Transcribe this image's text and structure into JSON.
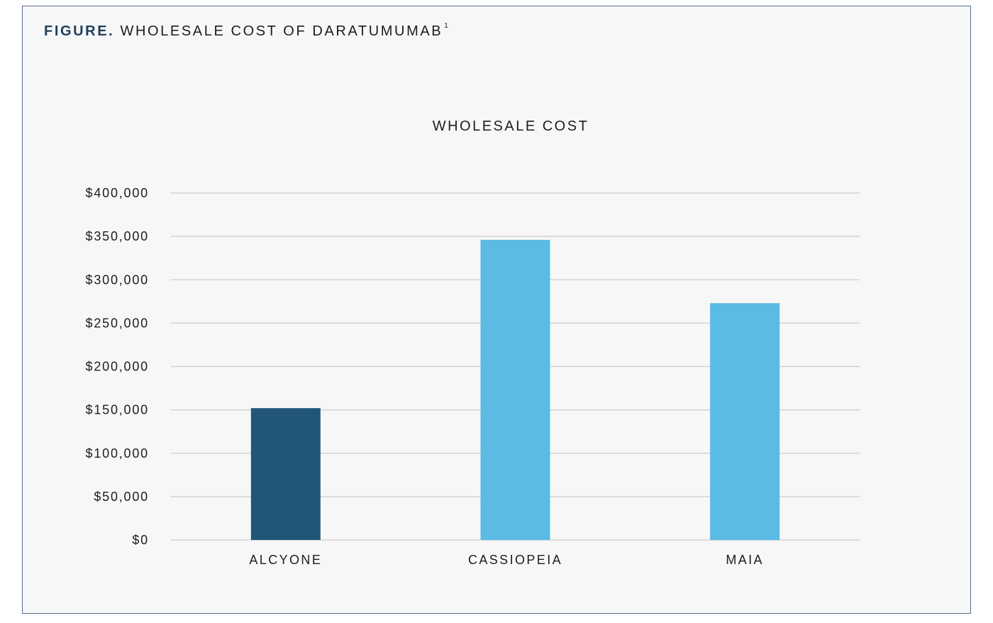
{
  "figure": {
    "label": "FIGURE.",
    "title": "WHOLESALE COST OF DARATUMUMAB",
    "footnote_ref": "1"
  },
  "chart_data": {
    "type": "bar",
    "title": "WHOLESALE COST",
    "xlabel": "",
    "ylabel": "",
    "categories": [
      "ALCYONE",
      "CASSIOPEIA",
      "MAIA"
    ],
    "values": [
      152000,
      346000,
      273000
    ],
    "bar_colors": [
      "#215677",
      "#5bbbe4",
      "#5bbbe4"
    ],
    "ylim": [
      0,
      400000
    ],
    "y_ticks": [
      {
        "value": 0,
        "label": "$0"
      },
      {
        "value": 50000,
        "label": "$50,000"
      },
      {
        "value": 100000,
        "label": "$100,000"
      },
      {
        "value": 150000,
        "label": "$150,000"
      },
      {
        "value": 200000,
        "label": "$200,000"
      },
      {
        "value": 250000,
        "label": "$250,000"
      },
      {
        "value": 300000,
        "label": "$300,000"
      },
      {
        "value": 350000,
        "label": "$350,000"
      },
      {
        "value": 400000,
        "label": "$400,000"
      }
    ],
    "grid": true,
    "legend": "none"
  },
  "colors": {
    "frame_border": "#5a6f8c",
    "background": "#f7f7f7",
    "gridline": "#cccccc",
    "figure_label": "#1e3f5e"
  }
}
